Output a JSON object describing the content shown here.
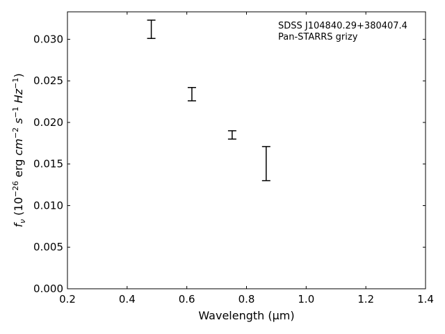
{
  "chart_data": {
    "type": "scatter",
    "style": "errorbar",
    "xlabel": "Wavelength (μm)",
    "ylabel": "f_ν (10^−26 erg cm^−2 s^−1 Hz^−1)",
    "xlim": [
      0.2,
      1.4
    ],
    "ylim": [
      0.0,
      0.0333
    ],
    "xticks": [
      "0.2",
      "0.4",
      "0.6",
      "0.8",
      "1.0",
      "1.2",
      "1.4"
    ],
    "yticks": [
      "0.000",
      "0.005",
      "0.010",
      "0.015",
      "0.020",
      "0.025",
      "0.030"
    ],
    "annotations": [
      "SDSS J104840.29+380407.4",
      "Pan-STARRS grizy"
    ],
    "grid": false,
    "series": [
      {
        "points": [
          {
            "x": 0.481,
            "y": 0.0312,
            "ylo": 0.0301,
            "yhi": 0.0323
          },
          {
            "x": 0.617,
            "y": 0.0234,
            "ylo": 0.0226,
            "yhi": 0.0242
          },
          {
            "x": 0.752,
            "y": 0.0185,
            "ylo": 0.018,
            "yhi": 0.019
          },
          {
            "x": 0.866,
            "y": 0.015,
            "ylo": 0.013,
            "yhi": 0.0171
          }
        ]
      }
    ]
  }
}
